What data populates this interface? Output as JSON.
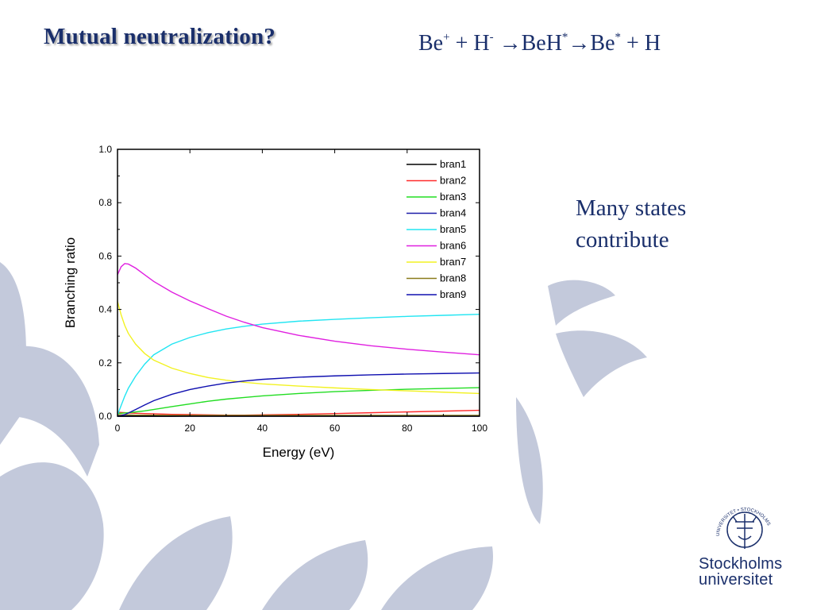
{
  "slide": {
    "title": "Mutual neutralization?",
    "reaction": {
      "be": "Be",
      "be_sup": "+",
      "plus1": " + H",
      "h_sup": "-",
      "arrow1": " →BeH",
      "beh_sup": "*",
      "arrow2": "→Be",
      "be2_sup": "*",
      "tail": " + H"
    },
    "note_line1": "Many states",
    "note_line2": "contribute",
    "logo_line1": "Stockholms",
    "logo_line2": "universitet",
    "logo_ring_text": "UNIVERSITET • STOCKHOLMS"
  },
  "colors": {
    "title": "#1a2f6b",
    "decor": "#c3c9db"
  },
  "chart_data": {
    "type": "line",
    "title": "",
    "xlabel": "Energy (eV)",
    "ylabel": "Branching ratio",
    "xlim": [
      0,
      100
    ],
    "ylim": [
      0,
      1.0
    ],
    "xticks": [
      0,
      20,
      40,
      60,
      80,
      100
    ],
    "yticks": [
      0.0,
      0.2,
      0.4,
      0.6,
      0.8,
      1.0
    ],
    "ytick_labels": [
      "0.0",
      "0.2",
      "0.4",
      "0.6",
      "0.8",
      "1.0"
    ],
    "grid": false,
    "legend": "top-right",
    "x": [
      0,
      1,
      2,
      3,
      5,
      7.5,
      10,
      15,
      20,
      25,
      30,
      35,
      40,
      50,
      60,
      70,
      80,
      90,
      100
    ],
    "series": [
      {
        "name": "bran1",
        "color": "#000000",
        "values": [
          0.0,
          0.0,
          0.0,
          0.0,
          0.0,
          0.0,
          0.0,
          0.0,
          0.001,
          0.001,
          0.001,
          0.001,
          0.001,
          0.001,
          0.002,
          0.002,
          0.002,
          0.002,
          0.002
        ]
      },
      {
        "name": "bran2",
        "color": "#ff2a2a",
        "values": [
          0.015,
          0.014,
          0.013,
          0.012,
          0.011,
          0.01,
          0.009,
          0.007,
          0.006,
          0.005,
          0.004,
          0.004,
          0.005,
          0.007,
          0.01,
          0.013,
          0.016,
          0.019,
          0.022
        ]
      },
      {
        "name": "bran3",
        "color": "#22dd22",
        "values": [
          0.01,
          0.011,
          0.012,
          0.013,
          0.016,
          0.02,
          0.025,
          0.036,
          0.046,
          0.056,
          0.064,
          0.07,
          0.076,
          0.085,
          0.092,
          0.097,
          0.101,
          0.104,
          0.107
        ]
      },
      {
        "name": "bran4",
        "color": "#1c1ca8",
        "values": [
          0.0,
          0.0,
          0.0,
          0.0,
          0.0,
          0.0,
          0.0,
          0.0,
          0.0,
          0.0,
          0.0,
          0.0,
          0.0,
          0.0,
          0.0,
          0.0,
          0.0,
          0.0,
          0.0
        ]
      },
      {
        "name": "bran5",
        "color": "#22e5f2",
        "values": [
          0.005,
          0.04,
          0.075,
          0.105,
          0.15,
          0.195,
          0.23,
          0.27,
          0.295,
          0.313,
          0.327,
          0.337,
          0.345,
          0.356,
          0.363,
          0.369,
          0.374,
          0.378,
          0.382
        ]
      },
      {
        "name": "bran6",
        "color": "#e020e0",
        "values": [
          0.53,
          0.56,
          0.572,
          0.57,
          0.555,
          0.53,
          0.505,
          0.465,
          0.432,
          0.403,
          0.375,
          0.352,
          0.332,
          0.303,
          0.281,
          0.264,
          0.251,
          0.24,
          0.23
        ]
      },
      {
        "name": "bran7",
        "color": "#f2f222",
        "values": [
          0.43,
          0.38,
          0.34,
          0.31,
          0.27,
          0.235,
          0.21,
          0.18,
          0.16,
          0.145,
          0.135,
          0.127,
          0.121,
          0.113,
          0.106,
          0.1,
          0.095,
          0.09,
          0.085
        ]
      },
      {
        "name": "bran8",
        "color": "#8a7a1a",
        "values": [
          0.005,
          0.005,
          0.005,
          0.005,
          0.004,
          0.004,
          0.004,
          0.003,
          0.003,
          0.003,
          0.003,
          0.003,
          0.003,
          0.003,
          0.003,
          0.003,
          0.003,
          0.003,
          0.003
        ]
      },
      {
        "name": "bran9",
        "color": "#1010b0",
        "values": [
          0.0,
          0.002,
          0.006,
          0.012,
          0.025,
          0.042,
          0.058,
          0.082,
          0.1,
          0.113,
          0.124,
          0.132,
          0.138,
          0.146,
          0.151,
          0.155,
          0.158,
          0.16,
          0.162
        ]
      }
    ]
  }
}
